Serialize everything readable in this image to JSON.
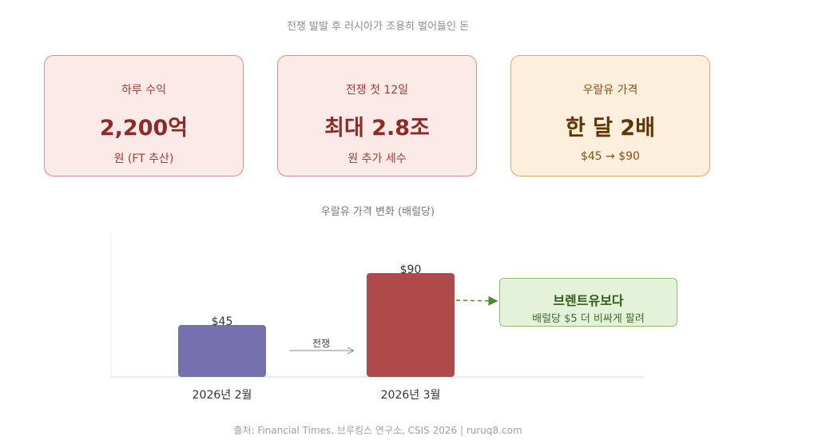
{
  "title": "전쟁 발발 후 러시아가 조용히 벌어들인 돈",
  "cards": [
    {
      "label": "하루 수익",
      "value": "2,200억",
      "sub": "원 (FT 추산)",
      "accent": "#8f2a27"
    },
    {
      "label": "전쟁 첫 12일",
      "value": "최대 2.8조",
      "sub": "원 추가 세수",
      "accent": "#8f2a27"
    },
    {
      "label": "우랄유 가격",
      "value": "한 달 2배",
      "sub": "$45 → $90",
      "accent": "#5e3608"
    }
  ],
  "chart_data": {
    "type": "bar",
    "title": "우랄유 가격 변화 (배럴당)",
    "categories": [
      "2026년 2월",
      "2026년 3월"
    ],
    "values": [
      45,
      90
    ],
    "value_labels": [
      "$45",
      "$90"
    ],
    "colors": [
      "#7670ae",
      "#ae4a4a"
    ],
    "annotation_arrow": "전쟁",
    "callout": {
      "title": "브렌트유보다",
      "text": "배럴당 $5 더 비싸게 팔려"
    },
    "ylim": [
      0,
      90
    ],
    "grid": false
  },
  "source": "출처: Financial Times, 브루킹스 연구소, CSIS 2026 | ruruq8.com"
}
